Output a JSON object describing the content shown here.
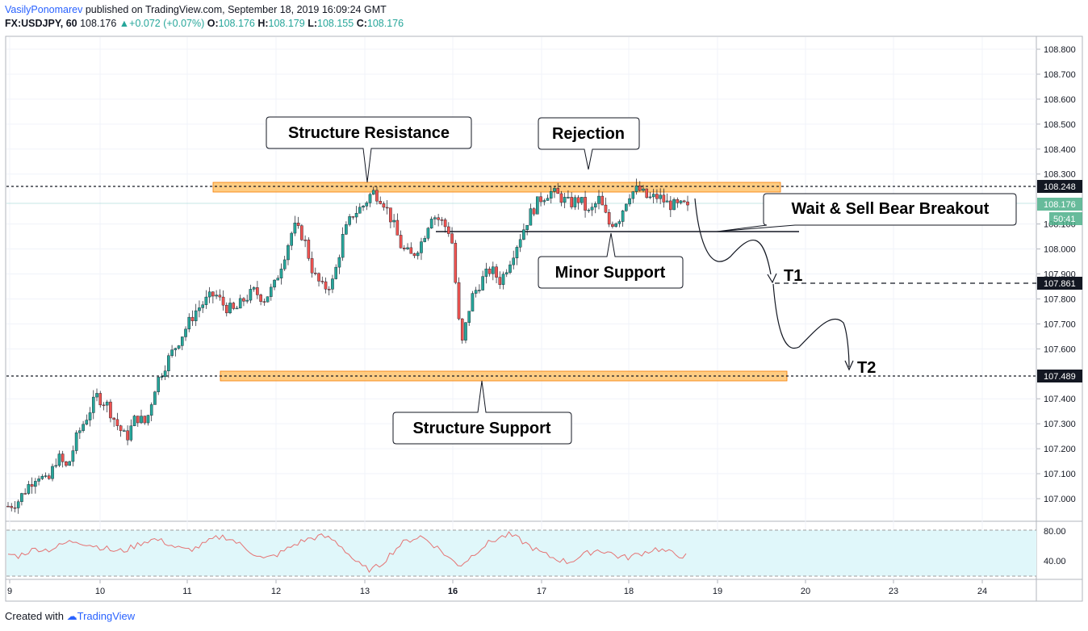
{
  "header": {
    "author": "VasilyPonomarev",
    "published": "published on TradingView.com, September 18, 2019 16:09:24 GMT",
    "symbol": "FX:USDJPY, 60",
    "last": "108.176",
    "change": "+0.072 (+0.07%)",
    "o_label": "O:",
    "o": "108.176",
    "h_label": "H:",
    "h": "108.179",
    "l_label": "L:",
    "l": "108.155",
    "c_label": "C:",
    "c": "108.176"
  },
  "footer": {
    "created": "Created with",
    "brand": "TradingView"
  },
  "annotations": {
    "structure_resistance": "Structure Resistance",
    "rejection": "Rejection",
    "wait_sell": "Wait & Sell Bear Breakout",
    "minor_support": "Minor Support",
    "structure_support": "Structure Support",
    "t1": "T1",
    "t2": "T2"
  },
  "price_badges": {
    "resistance": "108.248",
    "current": "108.176",
    "countdown": "50:41",
    "t1": "107.861",
    "support": "107.489"
  },
  "colors": {
    "bull": "#26a69a",
    "bear": "#ef5350",
    "zone": "#ffb74d",
    "rsi_line": "#e57373",
    "rsi_fill": "#e0f7fa"
  },
  "chart_data": {
    "type": "candlestick",
    "symbol": "FX:USDJPY",
    "interval": "60",
    "y_axis": {
      "ticks": [
        "108.800",
        "108.700",
        "108.600",
        "108.500",
        "108.400",
        "108.300",
        "108.100",
        "108.000",
        "107.900",
        "107.800",
        "107.700",
        "107.600",
        "107.400",
        "107.300",
        "107.200",
        "107.100",
        "107.000"
      ],
      "range": [
        106.94,
        108.85
      ]
    },
    "x_axis": {
      "ticks": [
        "9",
        "10",
        "11",
        "12",
        "13",
        "16",
        "17",
        "18",
        "19",
        "20",
        "23",
        "24"
      ]
    },
    "levels": {
      "structure_resistance": 108.248,
      "structure_support": 107.489,
      "minor_support": 108.07,
      "t1": 107.861
    },
    "close_path": [
      106.97,
      106.99,
      107.05,
      107.1,
      107.06,
      107.17,
      107.12,
      107.25,
      107.33,
      107.41,
      107.38,
      107.3,
      107.24,
      107.33,
      107.3,
      107.46,
      107.54,
      107.61,
      107.68,
      107.75,
      107.79,
      107.82,
      107.77,
      107.75,
      107.8,
      107.83,
      107.8,
      107.85,
      107.97,
      108.09,
      108.05,
      107.9,
      107.84,
      107.87,
      108.05,
      108.14,
      108.17,
      108.23,
      108.2,
      108.11,
      108.0,
      107.97,
      108.03,
      108.14,
      108.11,
      108.06,
      107.6,
      107.8,
      107.87,
      107.92,
      107.87,
      107.96,
      108.05,
      108.14,
      108.2,
      108.23,
      108.21,
      108.18,
      108.2,
      108.14,
      108.2,
      108.1,
      108.12,
      108.22,
      108.24,
      108.2,
      108.21,
      108.18,
      108.17,
      108.176
    ],
    "rsi": {
      "ticks": [
        "80.00",
        "40.00"
      ],
      "values": [
        55,
        52,
        58,
        62,
        60,
        64,
        70,
        72,
        68,
        65,
        62,
        58,
        60,
        66,
        72,
        74,
        70,
        64,
        60,
        62,
        68,
        75,
        78,
        72,
        64,
        56,
        48,
        52,
        58,
        66,
        72,
        76,
        78,
        74,
        64,
        50,
        38,
        34,
        42,
        56,
        68,
        74,
        78,
        70,
        60,
        48,
        40,
        50,
        62,
        70,
        76,
        80,
        74,
        66,
        58,
        52,
        48,
        44,
        50,
        56,
        60,
        58,
        52,
        50,
        54,
        58,
        62,
        58,
        54,
        52
      ]
    }
  }
}
